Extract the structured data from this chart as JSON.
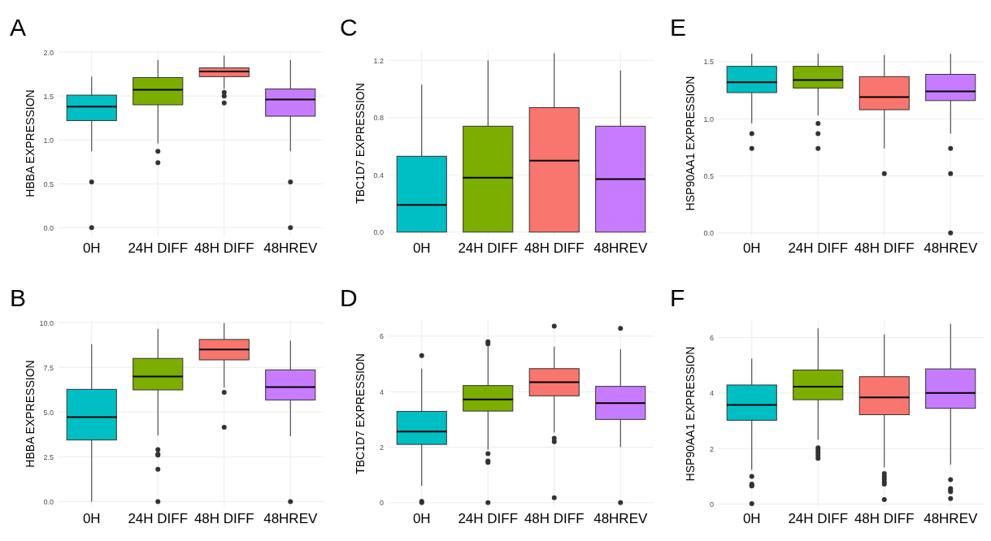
{
  "chart_data": [
    {
      "type": "box",
      "title": "A",
      "ylabel": "HBBA EXPRESSION",
      "categories": [
        "0H",
        "24H DIFF",
        "48H DIFF",
        "48HREV"
      ],
      "colors": [
        "#00bfc4",
        "#7cae00",
        "#f8766d",
        "#c77cff"
      ],
      "grid": true,
      "ylim": [
        -0.1,
        2.02
      ],
      "yticks": [
        {
          "value": 0,
          "label": "0.0"
        },
        {
          "value": 0.5,
          "label": "0.5"
        },
        {
          "value": 1,
          "label": "1.0"
        },
        {
          "value": 1.5,
          "label": "1.5"
        },
        {
          "value": 2,
          "label": "2.0"
        }
      ],
      "boxes": [
        {
          "low": 0.87,
          "q1": 1.22,
          "median": 1.38,
          "q3": 1.51,
          "high": 1.72,
          "outliers": [
            0.52,
            0
          ]
        },
        {
          "low": 0.96,
          "q1": 1.4,
          "median": 1.57,
          "q3": 1.71,
          "high": 1.91,
          "outliers": [
            0.87,
            0.74
          ]
        },
        {
          "low": 1.58,
          "q1": 1.72,
          "median": 1.78,
          "q3": 1.82,
          "high": 1.96,
          "outliers": [
            1.54,
            1.5,
            1.42
          ]
        },
        {
          "low": 0.87,
          "q1": 1.27,
          "median": 1.46,
          "q3": 1.58,
          "high": 1.91,
          "outliers": [
            0.52,
            0
          ]
        }
      ]
    },
    {
      "type": "box",
      "title": "C",
      "ylabel": "TBC1D7 EXPRESSION",
      "categories": [
        "0H",
        "24H DIFF",
        "48H DIFF",
        "48HREV"
      ],
      "colors": [
        "#00bfc4",
        "#7cae00",
        "#f8766d",
        "#c77cff"
      ],
      "grid": true,
      "ylim": [
        -0.03,
        1.27
      ],
      "yticks": [
        {
          "value": 0,
          "label": "0.0"
        },
        {
          "value": 0.4,
          "label": "0.4"
        },
        {
          "value": 0.8,
          "label": "0.8"
        },
        {
          "value": 1.2,
          "label": "1.2"
        }
      ],
      "boxes": [
        {
          "low": 0,
          "q1": 0,
          "median": 0.19,
          "q3": 0.53,
          "high": 1.03
        },
        {
          "low": 0,
          "q1": 0,
          "median": 0.38,
          "q3": 0.74,
          "high": 1.2
        },
        {
          "low": 0,
          "q1": 0,
          "median": 0.5,
          "q3": 0.87,
          "high": 1.25
        },
        {
          "low": 0,
          "q1": 0,
          "median": 0.37,
          "q3": 0.74,
          "high": 1.13
        }
      ]
    },
    {
      "type": "box",
      "title": "E",
      "ylabel": "HSP90AA1 EXPRESSION",
      "categories": [
        "0H",
        "24H DIFF",
        "48H DIFF",
        "48HREV"
      ],
      "colors": [
        "#00bfc4",
        "#7cae00",
        "#f8766d",
        "#c77cff"
      ],
      "grid": true,
      "ylim": [
        -0.03,
        1.6
      ],
      "yticks": [
        {
          "value": 0,
          "label": "0.0"
        },
        {
          "value": 0.5,
          "label": "0.5"
        },
        {
          "value": 1,
          "label": "1.0"
        },
        {
          "value": 1.5,
          "label": "1.5"
        }
      ],
      "boxes": [
        {
          "low": 0.96,
          "q1": 1.23,
          "median": 1.32,
          "q3": 1.46,
          "high": 1.57,
          "outliers": [
            0.87,
            0.74
          ]
        },
        {
          "low": 1.03,
          "q1": 1.27,
          "median": 1.34,
          "q3": 1.46,
          "high": 1.57,
          "outliers": [
            0.96,
            0.87,
            0.74
          ]
        },
        {
          "low": 0.74,
          "q1": 1.08,
          "median": 1.19,
          "q3": 1.37,
          "high": 1.56,
          "outliers": [
            0.52
          ]
        },
        {
          "low": 0.87,
          "q1": 1.16,
          "median": 1.24,
          "q3": 1.39,
          "high": 1.57,
          "outliers": [
            0.74,
            0.52,
            0
          ]
        }
      ]
    },
    {
      "type": "box",
      "title": "B",
      "ylabel": "HBBA EXPRESSION",
      "categories": [
        "0H",
        "24H DIFF",
        "48H DIFF",
        "48HREV"
      ],
      "colors": [
        "#00bfc4",
        "#7cae00",
        "#f8766d",
        "#c77cff"
      ],
      "grid": true,
      "ylim": [
        -0.3,
        10.1
      ],
      "yticks": [
        {
          "value": 0,
          "label": "0.0"
        },
        {
          "value": 2.5,
          "label": "2.5"
        },
        {
          "value": 5,
          "label": "5.0"
        },
        {
          "value": 7.5,
          "label": "7.5"
        },
        {
          "value": 10,
          "label": "10.0"
        }
      ],
      "boxes": [
        {
          "low": 0,
          "q1": 3.44,
          "median": 4.72,
          "q3": 6.27,
          "high": 8.8
        },
        {
          "low": 3.7,
          "q1": 6.24,
          "median": 6.99,
          "q3": 8.0,
          "high": 9.65,
          "outliers": [
            2.9,
            2.65,
            2.6,
            1.8,
            0
          ]
        },
        {
          "low": 6.37,
          "q1": 7.92,
          "median": 8.5,
          "q3": 9.06,
          "high": 9.97,
          "outliers": [
            6.1,
            4.15
          ]
        },
        {
          "low": 3.65,
          "q1": 5.68,
          "median": 6.4,
          "q3": 7.36,
          "high": 9.0,
          "outliers": [
            0
          ]
        }
      ]
    },
    {
      "type": "box",
      "title": "D",
      "ylabel": "TBC1D7 EXPRESSION",
      "categories": [
        "0H",
        "24H DIFF",
        "48H DIFF",
        "48HREV"
      ],
      "colors": [
        "#00bfc4",
        "#7cae00",
        "#f8766d",
        "#c77cff"
      ],
      "grid": true,
      "ylim": [
        -0.15,
        6.55
      ],
      "yticks": [
        0,
        2,
        4,
        6
      ],
      "boxes": [
        {
          "low": 0.61,
          "q1": 2.1,
          "median": 2.56,
          "q3": 3.29,
          "high": 4.83,
          "outliers": [
            5.3,
            0.05,
            0
          ]
        },
        {
          "low": 1.91,
          "q1": 3.3,
          "median": 3.72,
          "q3": 4.22,
          "high": 5.64,
          "outliers": [
            5.8,
            5.72,
            1.77,
            1.5,
            1.45,
            0
          ]
        },
        {
          "low": 2.53,
          "q1": 3.85,
          "median": 4.34,
          "q3": 4.83,
          "high": 5.62,
          "outliers": [
            6.36,
            2.32,
            2.2,
            0.18
          ]
        },
        {
          "low": 2.0,
          "q1": 3.0,
          "median": 3.59,
          "q3": 4.19,
          "high": 5.53,
          "outliers": [
            6.28,
            0
          ]
        }
      ]
    },
    {
      "type": "box",
      "title": "F",
      "ylabel": "HSP90AA1 EXPRESSION",
      "categories": [
        "0H",
        "24H DIFF",
        "48H DIFF",
        "48HREV"
      ],
      "colors": [
        "#00bfc4",
        "#7cae00",
        "#f8766d",
        "#c77cff"
      ],
      "grid": true,
      "ylim": [
        -0.1,
        6.6
      ],
      "yticks": [
        0,
        2,
        4,
        6
      ],
      "boxes": [
        {
          "low": 1.23,
          "q1": 3.02,
          "median": 3.57,
          "q3": 4.29,
          "high": 5.24,
          "outliers": [
            1.0,
            0.72,
            0.68,
            0.65,
            0.02
          ]
        },
        {
          "low": 2.32,
          "q1": 3.76,
          "median": 4.23,
          "q3": 4.83,
          "high": 6.33,
          "outliers": [
            2.03,
            1.95,
            1.85,
            1.75,
            1.65
          ]
        },
        {
          "low": 1.32,
          "q1": 3.22,
          "median": 3.84,
          "q3": 4.59,
          "high": 6.11,
          "outliers": [
            1.1,
            1.0,
            0.9,
            0.8,
            0.72,
            0.16
          ]
        },
        {
          "low": 1.42,
          "q1": 3.45,
          "median": 4.0,
          "q3": 4.87,
          "high": 6.49,
          "outliers": [
            0.88,
            0.56,
            0.5,
            0.45,
            0.2
          ]
        }
      ]
    }
  ]
}
